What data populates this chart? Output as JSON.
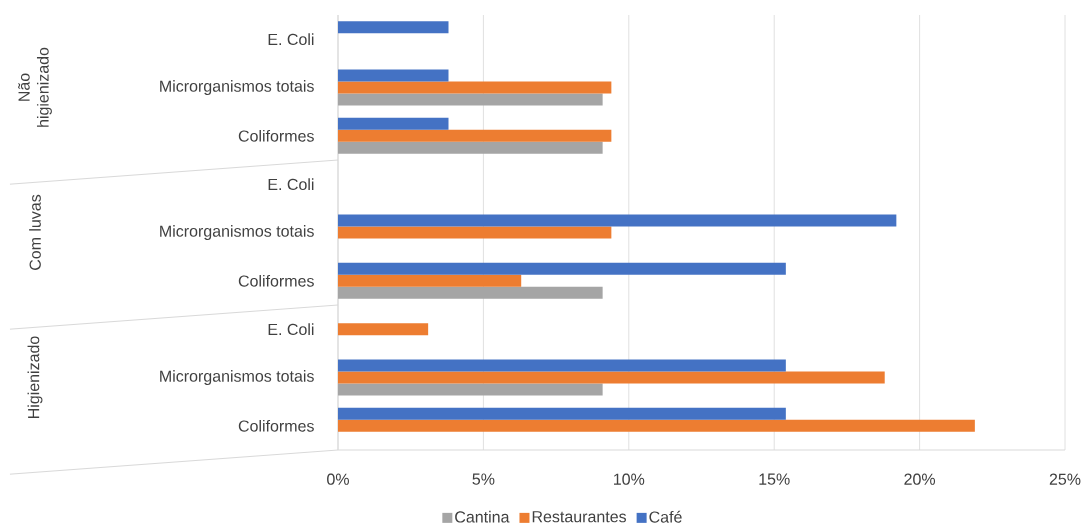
{
  "chart_data": {
    "type": "bar",
    "orientation": "horizontal",
    "categories": [
      "E. Coli",
      "Microrganismos totais",
      "Coliformes",
      "E. Coli",
      "Microrganismos totais",
      "Coliformes",
      "E. Coli",
      "Microrganismos totais",
      "Coliformes"
    ],
    "series": [
      {
        "name": "Cantina",
        "color": "#a5a5a5",
        "values": [
          null,
          9.1,
          9.1,
          null,
          null,
          9.1,
          null,
          9.1,
          null
        ]
      },
      {
        "name": "Restaurantes",
        "color": "#ed7d31",
        "values": [
          null,
          9.4,
          9.4,
          null,
          9.4,
          6.3,
          3.1,
          18.8,
          21.9
        ]
      },
      {
        "name": "Café",
        "color": "#4472c4",
        "values": [
          3.8,
          3.8,
          3.8,
          null,
          19.2,
          15.4,
          null,
          15.4,
          15.4
        ]
      }
    ],
    "xlim": [
      0,
      25
    ],
    "xticks": [
      {
        "value": 0,
        "label": "0%"
      },
      {
        "value": 5,
        "label": "5%"
      },
      {
        "value": 10,
        "label": "10%"
      },
      {
        "value": 15,
        "label": "15%"
      },
      {
        "value": 20,
        "label": "20%"
      },
      {
        "value": 25,
        "label": "25%"
      }
    ],
    "grid": "x",
    "legend": "bottom",
    "annotations": [
      "Não higienizado",
      "Com luvas",
      "Higienizado"
    ]
  }
}
